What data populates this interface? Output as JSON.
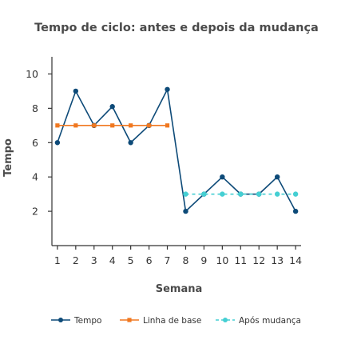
{
  "chart_data": {
    "type": "line",
    "title": "Tempo de ciclo: antes e depois da mudança",
    "xlabel": "Semana",
    "ylabel": "Tempo",
    "x": [
      1,
      2,
      3,
      4,
      5,
      6,
      7,
      8,
      9,
      10,
      11,
      12,
      13,
      14
    ],
    "xlim": [
      0.7,
      14.3
    ],
    "ylim": [
      0,
      11
    ],
    "yticks": [
      2,
      4,
      6,
      8,
      10
    ],
    "grid": false,
    "legend_position": "bottom",
    "series": [
      {
        "name": "Tempo",
        "color": "#0d4a78",
        "style": "solid",
        "marker": "circle",
        "x": [
          1,
          2,
          3,
          4,
          5,
          6,
          7,
          8,
          9,
          10,
          11,
          12,
          13,
          14
        ],
        "values": [
          6,
          9,
          7,
          8.1,
          6,
          7,
          9.1,
          2,
          3,
          4,
          3,
          3,
          4,
          2
        ]
      },
      {
        "name": "Linha de base",
        "color": "#f07820",
        "style": "solid",
        "marker": "square",
        "x": [
          1,
          2,
          3,
          4,
          5,
          6,
          7
        ],
        "values": [
          7,
          7,
          7,
          7,
          7,
          7,
          7
        ]
      },
      {
        "name": "Após mudança",
        "color": "#45cfd3",
        "style": "dashed",
        "marker": "circle",
        "x": [
          8,
          9,
          10,
          11,
          12,
          13,
          14
        ],
        "values": [
          3,
          3,
          3,
          3,
          3,
          3,
          3
        ]
      }
    ]
  }
}
